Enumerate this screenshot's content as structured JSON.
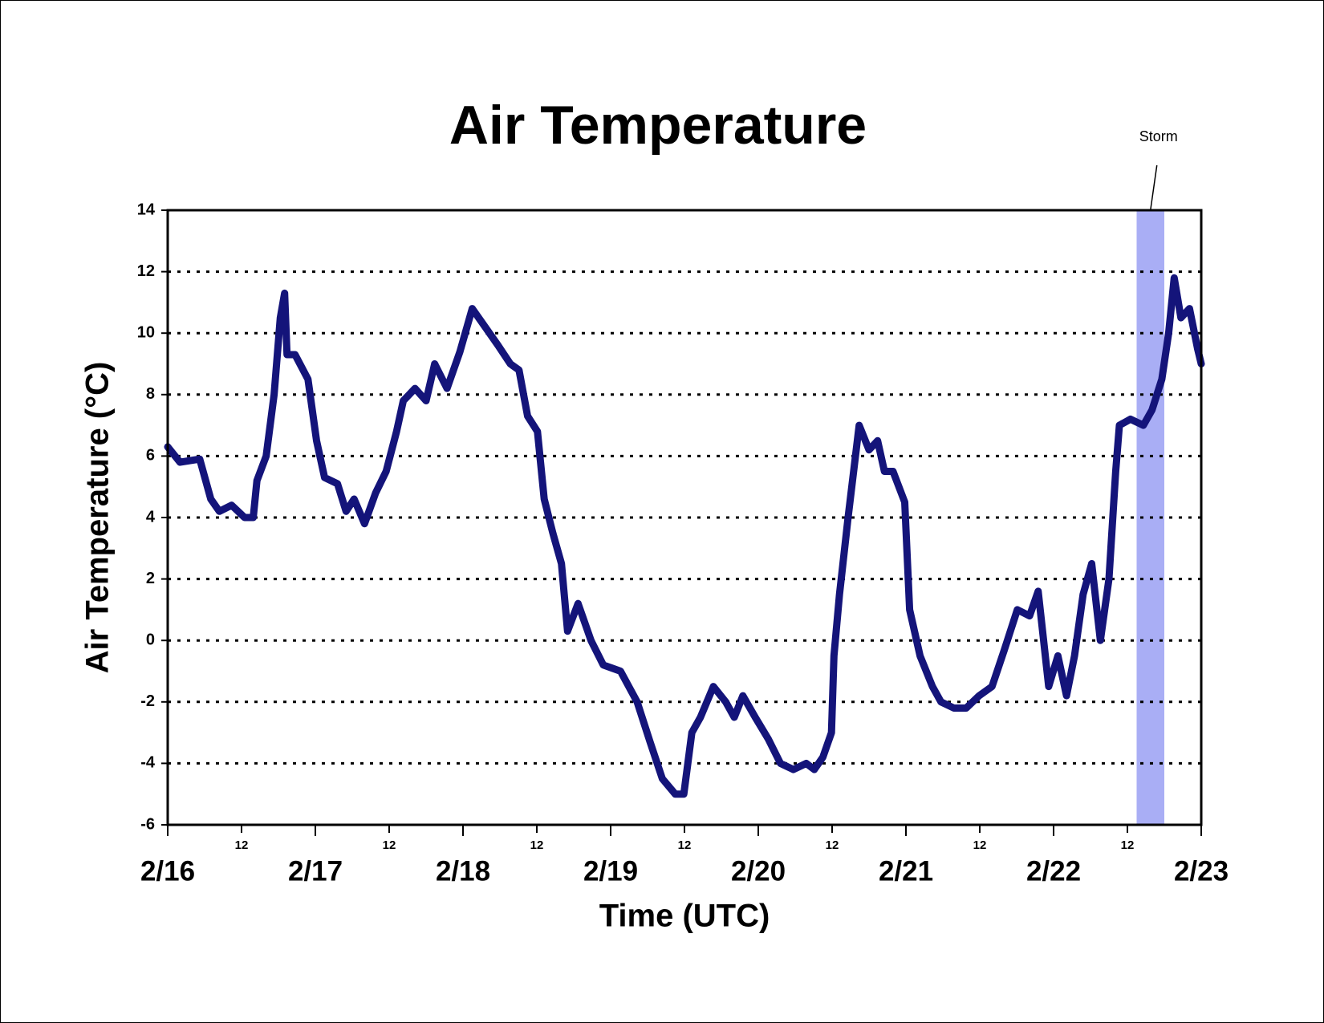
{
  "chart_data": {
    "type": "line",
    "title": "Air Temperature",
    "x_label": "Time (UTC)",
    "y_label": "Air Temperature (°C)",
    "xlim": [
      0,
      168
    ],
    "xticks": [
      {
        "value": 0,
        "label": "2/16"
      },
      {
        "value": 12,
        "label": "12"
      },
      {
        "value": 24,
        "label": "2/17"
      },
      {
        "value": 36,
        "label": "12"
      },
      {
        "value": 48,
        "label": "2/18"
      },
      {
        "value": 60,
        "label": "12"
      },
      {
        "value": 72,
        "label": "2/19"
      },
      {
        "value": 84,
        "label": "12"
      },
      {
        "value": 96,
        "label": "2/20"
      },
      {
        "value": 108,
        "label": "12"
      },
      {
        "value": 120,
        "label": "2/21"
      },
      {
        "value": 132,
        "label": "12"
      },
      {
        "value": 144,
        "label": "2/22"
      },
      {
        "value": 156,
        "label": "12"
      },
      {
        "value": 168,
        "label": "2/23"
      }
    ],
    "ylim": [
      -6,
      14
    ],
    "yticks": [
      -6,
      -4,
      -2,
      0,
      2,
      4,
      6,
      8,
      10,
      12,
      14
    ],
    "grid": true,
    "shaded_regions": [
      {
        "label": "Storm",
        "x0": 157.5,
        "x1": 162,
        "color": "#a9aef5"
      }
    ],
    "series": [
      {
        "name": "Air Temperature",
        "color": "#14147a",
        "x": [
          0,
          2,
          5.2,
          7,
          8.4,
          10.4,
          12.5,
          13.9,
          14.5,
          16,
          17.3,
          18.3,
          19,
          19.4,
          20.7,
          22.8,
          24.2,
          25.5,
          27.6,
          29,
          30.3,
          32,
          33.8,
          35.5,
          37.2,
          38.3,
          40.2,
          42,
          43.4,
          45.4,
          47.5,
          49.5,
          51.6,
          53.7,
          55.7,
          57.1,
          58.5,
          60.1,
          61.2,
          62.6,
          64,
          65,
          66.7,
          68.8,
          70.8,
          73.6,
          76.3,
          78.4,
          80.4,
          82.5,
          83.9,
          85.2,
          86.6,
          88.7,
          90.7,
          92.1,
          93.5,
          95.5,
          97.6,
          99.6,
          101.7,
          103.8,
          105.1,
          106.5,
          107.9,
          108.3,
          109.2,
          110.6,
          112.4,
          114,
          115.4,
          116.5,
          117.9,
          119.8,
          120.6,
          122.3,
          124.3,
          125.7,
          127.8,
          129.8,
          131.9,
          134,
          136,
          138.1,
          140.1,
          141.5,
          143.2,
          144.7,
          146.1,
          147.4,
          148.8,
          150.2,
          151.6,
          153,
          154.1,
          154.7,
          156.5,
          158.6,
          160,
          161.6,
          162.7,
          163.6,
          164.7,
          166.1,
          167.4,
          168
        ],
        "values": [
          6.3,
          5.8,
          5.9,
          4.6,
          4.2,
          4.4,
          4.0,
          4.0,
          5.2,
          6.0,
          8.0,
          10.5,
          11.3,
          9.3,
          9.3,
          8.5,
          6.5,
          5.3,
          5.1,
          4.2,
          4.6,
          3.8,
          4.8,
          5.5,
          6.8,
          7.8,
          8.2,
          7.8,
          9.0,
          8.2,
          9.4,
          10.8,
          10.2,
          9.6,
          9.0,
          8.8,
          7.3,
          6.8,
          4.6,
          3.5,
          2.5,
          0.3,
          1.2,
          0.0,
          -0.8,
          -1.0,
          -2.0,
          -3.3,
          -4.5,
          -5.0,
          -5.0,
          -3.0,
          -2.5,
          -1.5,
          -2.0,
          -2.5,
          -1.8,
          -2.5,
          -3.2,
          -4.0,
          -4.2,
          -4.0,
          -4.2,
          -3.8,
          -3.0,
          -0.5,
          1.5,
          4.0,
          7.0,
          6.2,
          6.5,
          5.5,
          5.5,
          4.5,
          1.0,
          -0.5,
          -1.5,
          -2.0,
          -2.2,
          -2.2,
          -1.8,
          -1.5,
          -0.3,
          1.0,
          0.8,
          1.6,
          -1.5,
          -0.5,
          -1.8,
          -0.5,
          1.5,
          2.5,
          0.0,
          2.0,
          5.5,
          7.0,
          7.2,
          7.0,
          7.5,
          8.5,
          10.0,
          11.8,
          10.5,
          10.8,
          9.5,
          9.0
        ]
      }
    ]
  }
}
